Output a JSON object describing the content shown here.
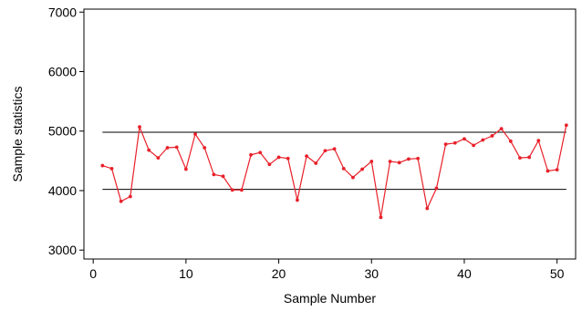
{
  "chart_data": {
    "type": "line",
    "xlabel": "Sample Number",
    "ylabel": "Sample statistics",
    "xlim": [
      -1,
      52
    ],
    "ylim": [
      2850,
      7050
    ],
    "x_ticks": [
      0,
      10,
      20,
      30,
      40,
      50
    ],
    "y_ticks": [
      3000,
      4000,
      5000,
      6000,
      7000
    ],
    "grid": false,
    "line_color": "#e8202a",
    "reference_lines": [
      {
        "name": "upper",
        "y": 4980,
        "x_range": [
          1,
          51
        ]
      },
      {
        "name": "lower",
        "y": 4020,
        "x_range": [
          1,
          51
        ]
      }
    ],
    "series": [
      {
        "x": [
          1,
          2,
          3,
          4,
          5,
          6,
          7,
          8,
          9,
          10,
          11,
          12,
          13,
          14,
          15,
          16,
          17,
          18,
          19,
          20,
          21,
          22,
          23,
          24,
          25,
          26,
          27,
          28,
          29,
          30,
          31,
          32,
          33,
          34,
          35,
          36,
          37,
          38,
          39,
          40,
          41,
          42,
          43,
          44,
          45,
          46,
          47,
          48,
          49,
          50,
          51
        ],
        "values": [
          4420,
          4370,
          3820,
          3900,
          5070,
          4680,
          4550,
          4720,
          4730,
          4360,
          4950,
          4720,
          4270,
          4240,
          4010,
          4010,
          4600,
          4640,
          4440,
          4560,
          4540,
          3840,
          4580,
          4460,
          4670,
          4700,
          4370,
          4220,
          4360,
          4490,
          3550,
          4490,
          4470,
          4530,
          4540,
          3700,
          4040,
          4780,
          4800,
          4870,
          4760,
          4850,
          4920,
          5040,
          4830,
          4550,
          4560,
          4840,
          4330,
          4350,
          5100
        ]
      }
    ]
  }
}
